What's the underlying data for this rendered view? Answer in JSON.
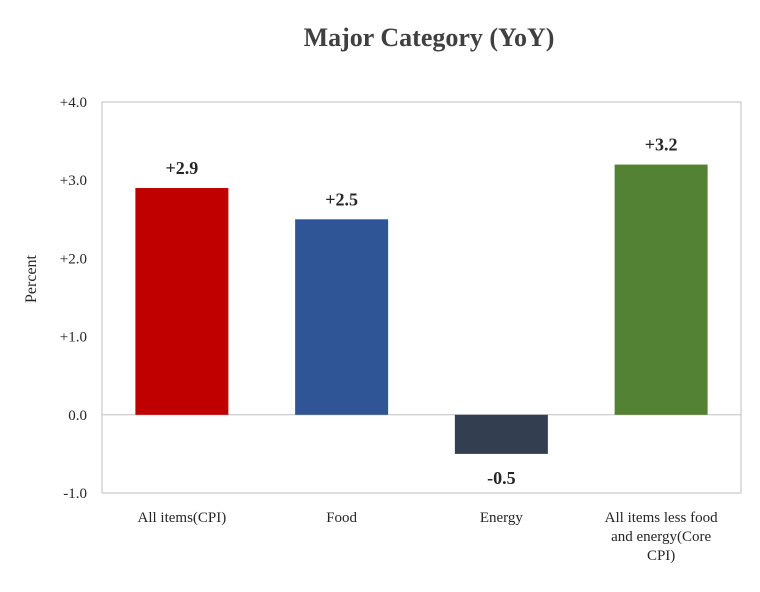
{
  "chart_data": {
    "type": "bar",
    "title": "Major Category (YoY)",
    "xlabel": "",
    "ylabel": "Percent",
    "ylim": [
      -1.0,
      4.0
    ],
    "yticks": [
      "+4.0",
      "+3.0",
      "+2.0",
      "+1.0",
      "0.0",
      "-1.0"
    ],
    "ytick_values": [
      4,
      3,
      2,
      1,
      0,
      -1
    ],
    "grid": false,
    "legend": "none",
    "categories": [
      [
        "All items(CPI)"
      ],
      [
        "Food"
      ],
      [
        "Energy"
      ],
      [
        "All items less food",
        "and energy(Core",
        "CPI)"
      ]
    ],
    "values": [
      2.9,
      2.5,
      -0.5,
      3.2
    ],
    "data_labels": [
      "+2.9",
      "+2.5",
      "-0.5",
      "+3.2"
    ],
    "colors": [
      "#c00000",
      "#2f5597",
      "#333f50",
      "#548235"
    ]
  }
}
